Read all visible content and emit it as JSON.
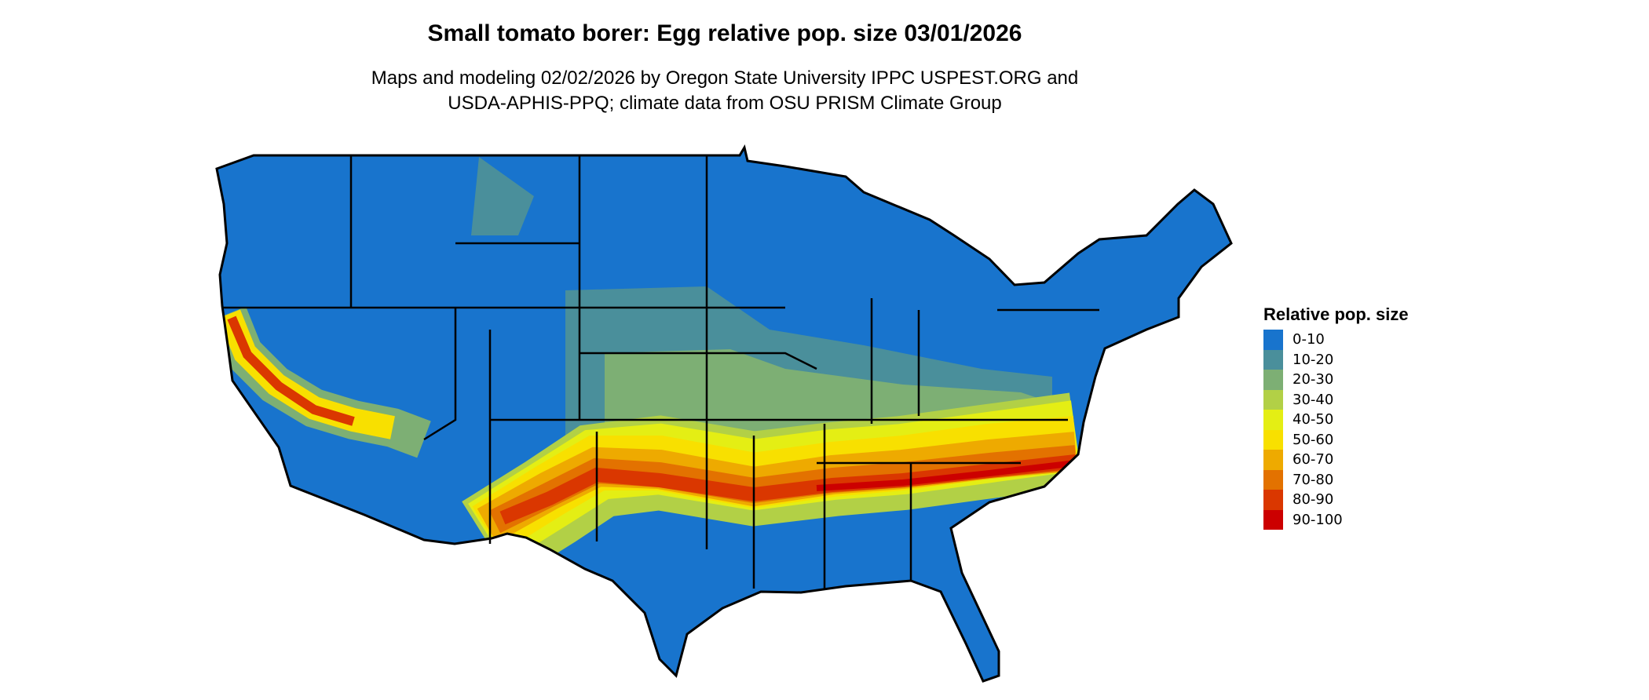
{
  "title": "Small tomato borer: Egg relative pop. size 03/01/2026",
  "subtitle": [
    "Maps and modeling 02/02/2026 by Oregon State University IPPC USPEST.ORG and",
    "USDA-APHIS-PPQ; climate data from OSU PRISM Climate Group"
  ],
  "legend": {
    "title": "Relative pop. size",
    "items": [
      {
        "label": "0-10",
        "color": "#1874CD"
      },
      {
        "label": "10-20",
        "color": "#4A8F9B"
      },
      {
        "label": "20-30",
        "color": "#7DAF74"
      },
      {
        "label": "30-40",
        "color": "#B2D046"
      },
      {
        "label": "40-50",
        "color": "#E4EE14"
      },
      {
        "label": "50-60",
        "color": "#F8E000"
      },
      {
        "label": "60-70",
        "color": "#EEAA00"
      },
      {
        "label": "70-80",
        "color": "#E37200"
      },
      {
        "label": "80-90",
        "color": "#DA3700"
      },
      {
        "label": "90-100",
        "color": "#CC0000"
      }
    ]
  },
  "map": {
    "region": "Contiguous United States",
    "border_color": "#000000"
  }
}
